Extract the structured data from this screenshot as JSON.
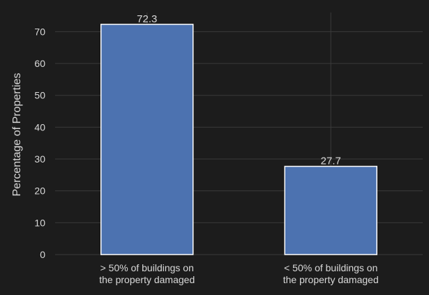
{
  "chart_data": {
    "type": "bar",
    "categories": [
      [
        "> 50% of buildings on",
        "the property damaged"
      ],
      [
        "< 50% of buildings on",
        "the property damaged"
      ]
    ],
    "values": [
      72.3,
      27.7
    ],
    "value_labels": [
      "72.3",
      "27.7"
    ],
    "title": "",
    "xlabel": "",
    "ylabel": "Percentage of Properties",
    "ylim": [
      0,
      76
    ],
    "yticks": [
      0,
      10,
      20,
      30,
      40,
      50,
      60,
      70
    ],
    "grid": true,
    "legend": "none"
  },
  "colors": {
    "background": "#1c1c1c",
    "bar_fill": "#4c72b0",
    "bar_edge": "#ffffff",
    "grid": "#3a3a3a",
    "text": "#d9d9d9"
  }
}
